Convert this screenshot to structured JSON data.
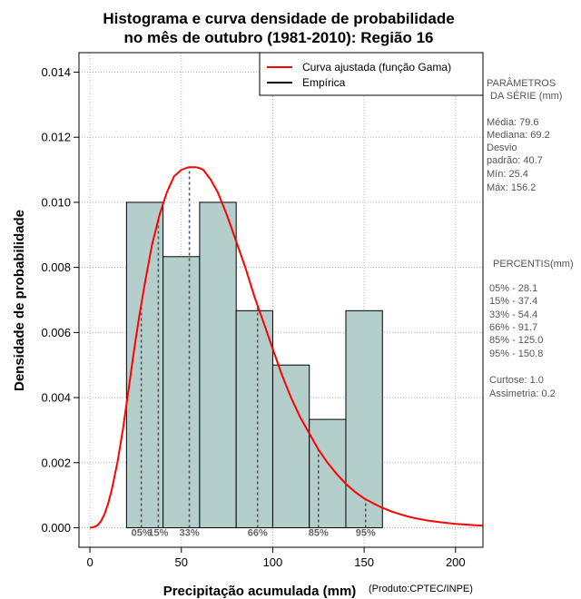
{
  "chart_data": {
    "type": "bar",
    "title_lines": [
      "Histograma e curva densidade de probabilidade",
      "no mês de outubro (1981-2010): Região 16"
    ],
    "xlabel": "Precipitação acumulada (mm)",
    "ylabel": "Densidade de probabilidade",
    "credit": "(Produto:CPTEC/INPE)",
    "xlim": [
      -6,
      215
    ],
    "ylim": [
      -0.0006,
      0.0146
    ],
    "x_ticks": [
      0,
      50,
      100,
      150,
      200
    ],
    "x_tick_labels": [
      "0",
      "50",
      "100",
      "150",
      "200"
    ],
    "y_ticks": [
      0,
      0.002,
      0.004,
      0.006,
      0.008,
      0.01,
      0.012,
      0.014
    ],
    "y_tick_labels": [
      "0.000",
      "0.002",
      "0.004",
      "0.006",
      "0.008",
      "0.010",
      "0.012",
      "0.014"
    ],
    "grid": true,
    "bins": [
      {
        "start": 20,
        "end": 40,
        "density": 0.01
      },
      {
        "start": 40,
        "end": 60,
        "density": 0.00833
      },
      {
        "start": 60,
        "end": 80,
        "density": 0.01
      },
      {
        "start": 80,
        "end": 100,
        "density": 0.00667
      },
      {
        "start": 100,
        "end": 120,
        "density": 0.005
      },
      {
        "start": 120,
        "end": 140,
        "density": 0.00333
      },
      {
        "start": 140,
        "end": 160,
        "density": 0.00667
      }
    ],
    "curve": {
      "name": "Curva ajustada (função Gama)",
      "x": [
        0,
        2,
        4,
        6,
        8,
        10,
        12,
        15,
        18,
        21,
        24,
        27,
        30,
        34,
        38,
        42,
        46,
        50,
        54,
        58,
        60,
        62,
        66,
        70,
        75,
        80,
        85,
        90,
        95,
        100,
        105,
        110,
        115,
        120,
        125,
        130,
        135,
        140,
        145,
        150,
        155,
        160,
        165,
        170,
        175,
        180,
        185,
        190,
        195,
        200,
        205,
        210,
        215
      ],
      "y": [
        0.0,
        2e-05,
        7e-05,
        0.0002,
        0.00042,
        0.00075,
        0.00118,
        0.002,
        0.003,
        0.0042,
        0.0054,
        0.0065,
        0.0075,
        0.0087,
        0.0096,
        0.0103,
        0.0108,
        0.011,
        0.01108,
        0.01108,
        0.01105,
        0.011,
        0.0107,
        0.0103,
        0.0096,
        0.0088,
        0.008,
        0.0071,
        0.0063,
        0.0055,
        0.0047,
        0.004,
        0.0034,
        0.0029,
        0.0024,
        0.002,
        0.00165,
        0.00135,
        0.0011,
        0.0009,
        0.00075,
        0.00061,
        0.0005,
        0.00041,
        0.00033,
        0.00027,
        0.00022,
        0.00018,
        0.00015,
        0.00012,
        0.0001,
        8e-05,
        6e-05
      ]
    },
    "percentiles": [
      {
        "label": "05%",
        "x": 28.1
      },
      {
        "label": "15%",
        "x": 37.4
      },
      {
        "label": "33%",
        "x": 54.4
      },
      {
        "label": "66%",
        "x": 91.7
      },
      {
        "label": "85%",
        "x": 125.0
      },
      {
        "label": "95%",
        "x": 150.8
      }
    ],
    "legend": [
      {
        "label": "Curva ajustada (função Gama)",
        "color": "#ff0000"
      },
      {
        "label": "Empírica",
        "color": "#000000"
      }
    ],
    "colors": {
      "bar_fill": "#b4cecc",
      "bar_stroke": "#000000",
      "curve": "#ff0000",
      "percentile_line": "#555555",
      "grid": "#b0b0b0"
    }
  },
  "side_panel": {
    "params_title_1": "PARÂMETROS",
    "params_title_2": "DA SÉRIE (mm)",
    "media": "Média:  79.6",
    "mediana": "Mediana:  69.2",
    "desvio_1": "Desvio",
    "desvio_2": "padrão:  40.7",
    "min": "Mín:  25.4",
    "max": "Máx:  156.2",
    "percentis_title": "PERCENTIS(mm)",
    "p05": "05% -  28.1",
    "p15": "15% -  37.4",
    "p33": "33% -  54.4",
    "p66": "66% -  91.7",
    "p85": "85% -  125.0",
    "p95": "95% -  150.8",
    "curtose": "Curtose:  1.0",
    "assimetria": "Assimetria:  0.2"
  }
}
